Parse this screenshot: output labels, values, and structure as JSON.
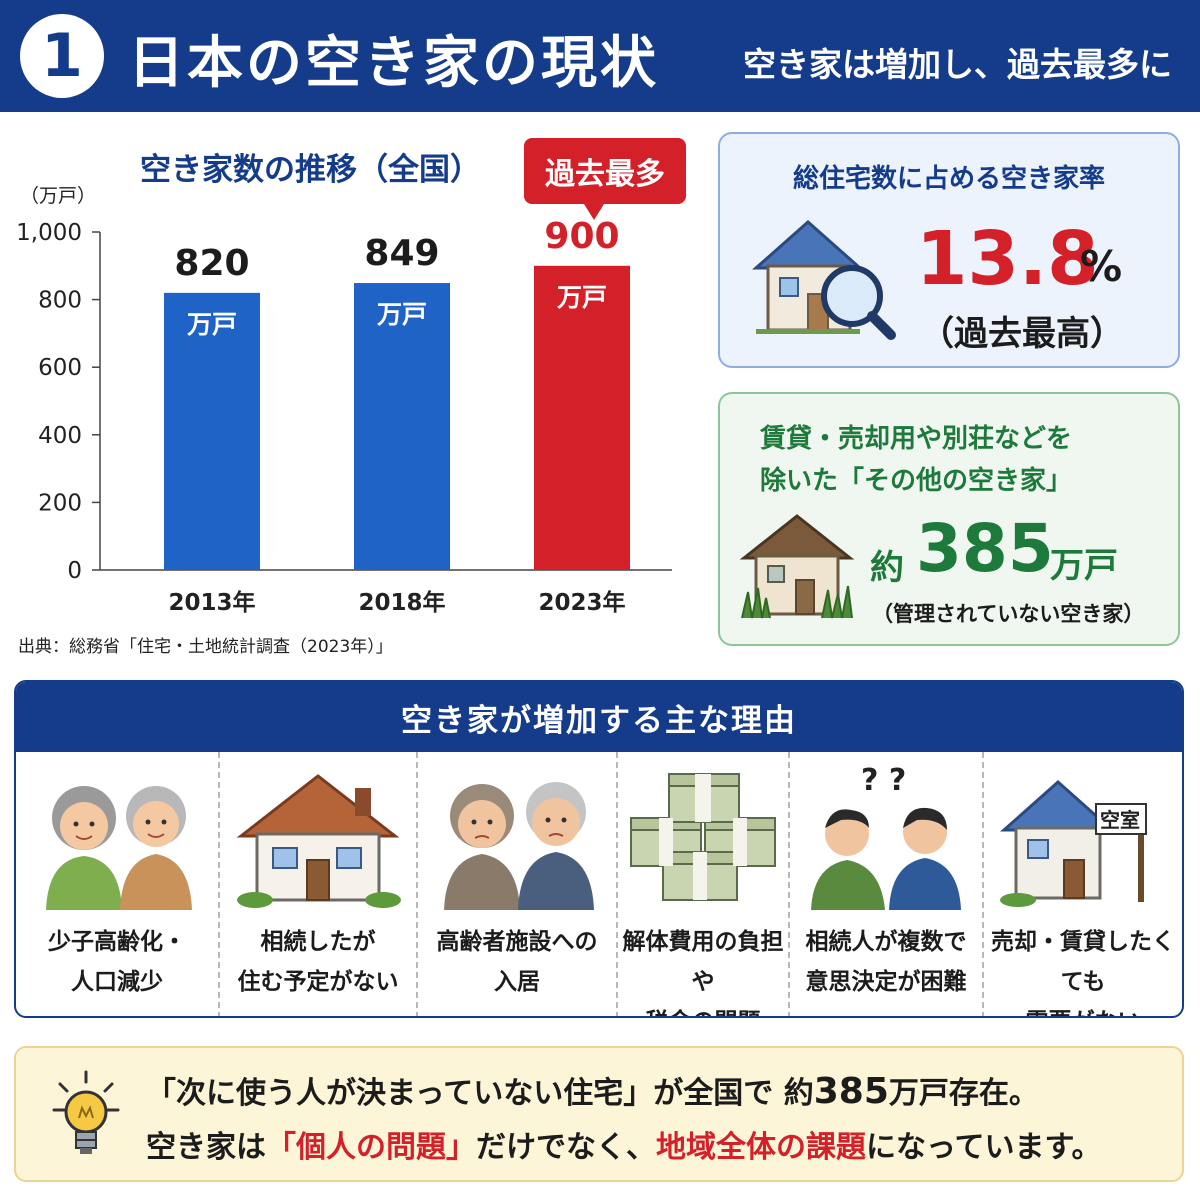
{
  "header": {
    "number": "1",
    "title": "日本の空き家の現状",
    "subtitle": "空き家は増加し、過去最多に"
  },
  "chart": {
    "title": "空き家数の推移（全国）",
    "badge": "過去最多",
    "source": "出典：総務省「住宅・土地統計調査（2023年）」"
  },
  "chart_data": {
    "type": "bar",
    "title": "空き家数の推移（全国）",
    "ylabel": "（万戸）",
    "categories": [
      "2013年",
      "2018年",
      "2023年"
    ],
    "values": [
      820,
      849,
      900
    ],
    "value_labels": [
      "820",
      "849",
      "900"
    ],
    "bar_unit_label": "万戸",
    "yticks": [
      "0",
      "200",
      "400",
      "600",
      "800",
      "1,000"
    ],
    "ylim": [
      0,
      1000
    ],
    "colors": [
      "#1f63c6",
      "#1f63c6",
      "#d42029"
    ],
    "grid": false,
    "annotation": "過去最多"
  },
  "rate_card": {
    "title": "総住宅数に占める空き家率",
    "value": "13.8",
    "unit": "%",
    "note": "（過去最高）"
  },
  "other_card": {
    "title_line1": "賃貸・売却用や別荘などを",
    "title_line2": "除いた「その他の空き家」",
    "prefix": "約",
    "value": "385",
    "unit": "万戸",
    "note": "（管理されていない空き家）"
  },
  "reasons": {
    "title": "空き家が増加する主な理由",
    "items": [
      {
        "line1": "少子高齢化・",
        "line2": "人口減少"
      },
      {
        "line1": "相続したが",
        "line2": "住む予定がない"
      },
      {
        "line1": "高齢者施設への",
        "line2": "入居"
      },
      {
        "line1": "解体費用の負担や",
        "line2": "税金の問題"
      },
      {
        "line1": "相続人が複数で",
        "line2": "意思決定が困難"
      },
      {
        "line1": "売却・賃貸したくても",
        "line2": "需要がない"
      }
    ],
    "questions": "? ?",
    "sign_text": "空室"
  },
  "tip": {
    "l1_a": "「次に使う人が決まっていない住宅」が全国で 約",
    "l1_num": "385",
    "l1_b": "万戸存在。",
    "l2_a": "空き家は",
    "l2_red1": "「個人の問題」",
    "l2_b": "だけでなく、",
    "l2_red2": "地域全体の課題",
    "l2_c": "になっています。"
  },
  "colors": {
    "navy": "#143c8a",
    "blue_bar": "#1f63c6",
    "red": "#d42029",
    "green": "#1d7a3a",
    "tip_bg": "#fdf5d8"
  }
}
